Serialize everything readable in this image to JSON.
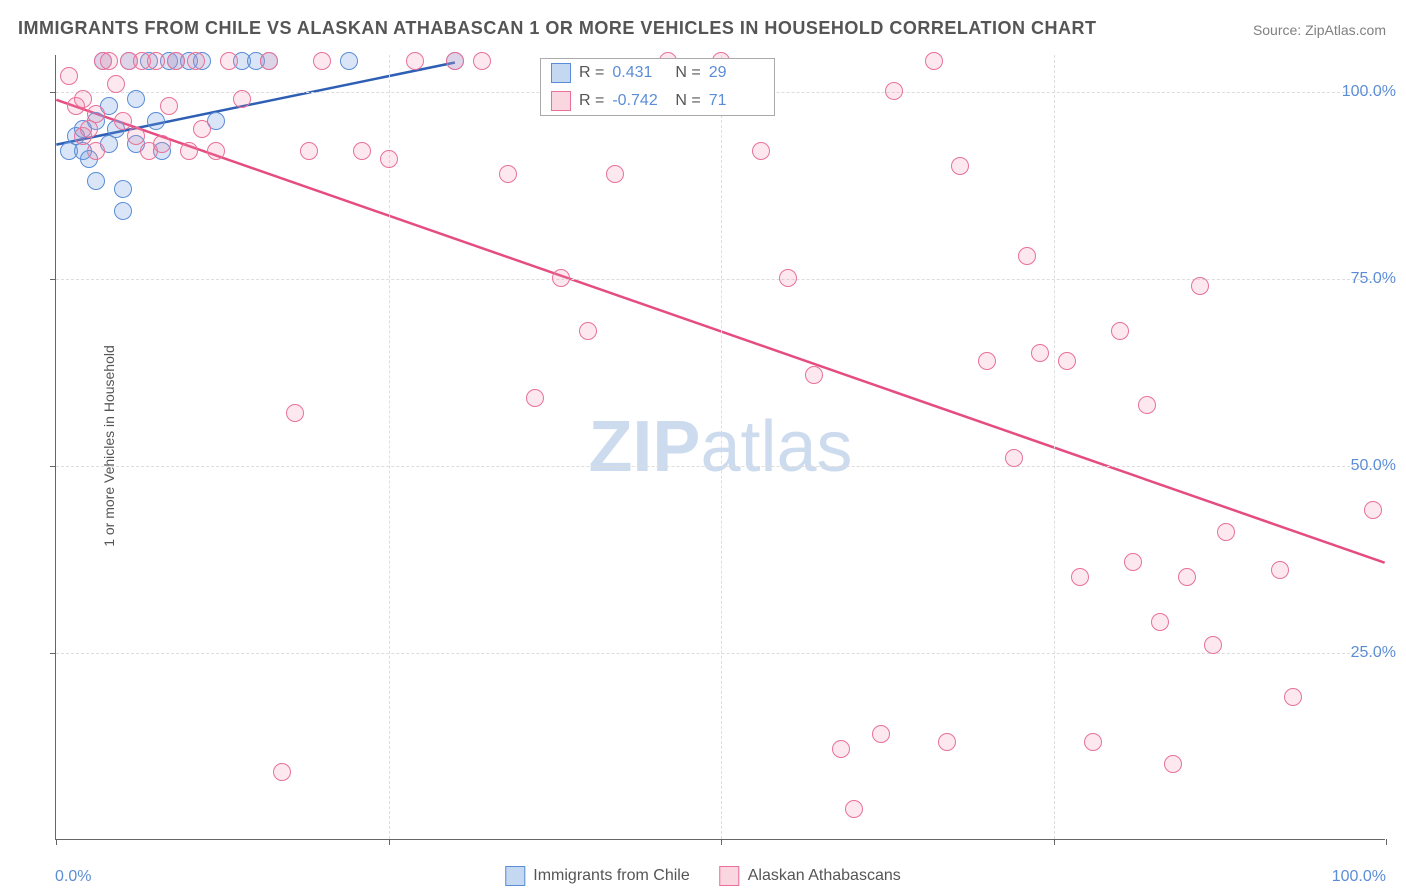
{
  "title": "IMMIGRANTS FROM CHILE VS ALASKAN ATHABASCAN 1 OR MORE VEHICLES IN HOUSEHOLD CORRELATION CHART",
  "source": "Source: ZipAtlas.com",
  "watermark_a": "ZIP",
  "watermark_b": "atlas",
  "chart": {
    "type": "scatter",
    "xlim": [
      0,
      100
    ],
    "ylim": [
      0,
      105
    ],
    "x_tick_positions": [
      0,
      25,
      50,
      75,
      100
    ],
    "y_tick_positions": [
      25,
      50,
      75,
      100
    ],
    "x_labels": {
      "first": "0.0%",
      "last": "100.0%"
    },
    "y_labels": [
      "25.0%",
      "50.0%",
      "75.0%",
      "100.0%"
    ],
    "y_axis_title": "1 or more Vehicles in Household",
    "grid_color": "#dddddd",
    "axis_color": "#666666",
    "background_color": "#ffffff",
    "tick_label_color": "#5b8dd6",
    "title_color": "#555555",
    "title_fontsize": 18,
    "label_fontsize": 14,
    "tick_fontsize": 16,
    "marker_radius": 9,
    "marker_border_width": 1.5,
    "trend_line_width": 2.5,
    "series": [
      {
        "name": "Immigrants from Chile",
        "color_fill": "rgba(107,157,222,0.25)",
        "color_stroke": "#5b8dd6",
        "trend_color": "#2e5fb5",
        "R": "0.431",
        "N": "29",
        "trend": {
          "x1": 0,
          "y1": 93,
          "x2": 30,
          "y2": 104
        },
        "points": [
          [
            1,
            92
          ],
          [
            1.5,
            94
          ],
          [
            2,
            95
          ],
          [
            2,
            92
          ],
          [
            2.5,
            91
          ],
          [
            3,
            96
          ],
          [
            3,
            88
          ],
          [
            3.5,
            104
          ],
          [
            4,
            93
          ],
          [
            4,
            98
          ],
          [
            4.5,
            95
          ],
          [
            5,
            87
          ],
          [
            5,
            84
          ],
          [
            5.5,
            104
          ],
          [
            6,
            93
          ],
          [
            6,
            99
          ],
          [
            7,
            104
          ],
          [
            7.5,
            96
          ],
          [
            8,
            92
          ],
          [
            8.5,
            104
          ],
          [
            9,
            104
          ],
          [
            10,
            104
          ],
          [
            11,
            104
          ],
          [
            12,
            96
          ],
          [
            14,
            104
          ],
          [
            15,
            104
          ],
          [
            16,
            104
          ],
          [
            22,
            104
          ],
          [
            30,
            104
          ]
        ]
      },
      {
        "name": "Alaskan Athabascans",
        "color_fill": "rgba(242,138,168,0.2)",
        "color_stroke": "#e8719a",
        "trend_color": "#e54d82",
        "R": "-0.742",
        "N": "71",
        "trend": {
          "x1": 0,
          "y1": 99,
          "x2": 100,
          "y2": 37
        },
        "points": [
          [
            1,
            102
          ],
          [
            1.5,
            98
          ],
          [
            2,
            99
          ],
          [
            2,
            94
          ],
          [
            2.5,
            95
          ],
          [
            3,
            97
          ],
          [
            3,
            92
          ],
          [
            3.5,
            104
          ],
          [
            4,
            104
          ],
          [
            4.5,
            101
          ],
          [
            5,
            96
          ],
          [
            5.5,
            104
          ],
          [
            6,
            94
          ],
          [
            6.5,
            104
          ],
          [
            7,
            92
          ],
          [
            7.5,
            104
          ],
          [
            8,
            93
          ],
          [
            8.5,
            98
          ],
          [
            9,
            104
          ],
          [
            10,
            92
          ],
          [
            10.5,
            104
          ],
          [
            11,
            95
          ],
          [
            12,
            92
          ],
          [
            13,
            104
          ],
          [
            14,
            99
          ],
          [
            16,
            104
          ],
          [
            17,
            9
          ],
          [
            18,
            57
          ],
          [
            19,
            92
          ],
          [
            20,
            104
          ],
          [
            23,
            92
          ],
          [
            25,
            91
          ],
          [
            27,
            104
          ],
          [
            30,
            104
          ],
          [
            32,
            104
          ],
          [
            34,
            89
          ],
          [
            36,
            59
          ],
          [
            38,
            75
          ],
          [
            40,
            68
          ],
          [
            42,
            89
          ],
          [
            46,
            104
          ],
          [
            50,
            104
          ],
          [
            53,
            92
          ],
          [
            55,
            75
          ],
          [
            57,
            62
          ],
          [
            59,
            12
          ],
          [
            60,
            4
          ],
          [
            62,
            14
          ],
          [
            63,
            100
          ],
          [
            66,
            104
          ],
          [
            67,
            13
          ],
          [
            68,
            90
          ],
          [
            70,
            64
          ],
          [
            72,
            51
          ],
          [
            73,
            78
          ],
          [
            74,
            65
          ],
          [
            76,
            64
          ],
          [
            77,
            35
          ],
          [
            78,
            13
          ],
          [
            80,
            68
          ],
          [
            81,
            37
          ],
          [
            82,
            58
          ],
          [
            83,
            29
          ],
          [
            84,
            10
          ],
          [
            85,
            35
          ],
          [
            86,
            74
          ],
          [
            87,
            26
          ],
          [
            88,
            41
          ],
          [
            92,
            36
          ],
          [
            93,
            19
          ],
          [
            99,
            44
          ]
        ]
      }
    ]
  },
  "stats_box": {
    "r_label": "R =",
    "n_label": "N ="
  },
  "legend": {
    "series1": "Immigrants from Chile",
    "series2": "Alaskan Athabascans"
  }
}
